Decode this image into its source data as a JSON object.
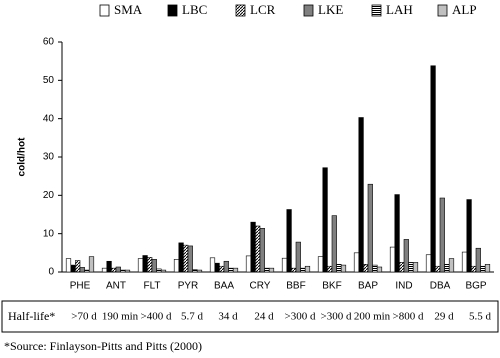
{
  "chart_data": {
    "type": "bar",
    "y_label": "cold/hot",
    "categories": [
      "PHE",
      "ANT",
      "FLT",
      "PYR",
      "BAA",
      "CRY",
      "BBF",
      "BKF",
      "BAP",
      "IND",
      "DBA",
      "BGP"
    ],
    "series": [
      {
        "name": "SMA",
        "color": "#ffffff",
        "values": [
          3.5,
          1.0,
          3.5,
          3.3,
          3.7,
          4.2,
          3.6,
          4.0,
          5.0,
          6.5,
          4.5,
          5.2
        ]
      },
      {
        "name": "LBC",
        "color": "#000000",
        "values": [
          1.8,
          2.8,
          4.3,
          7.6,
          2.3,
          13.0,
          16.3,
          27.2,
          40.3,
          20.2,
          53.8,
          18.9
        ]
      },
      {
        "name": "LCR",
        "color": "#000000",
        "pattern": "diagonal",
        "values": [
          3.0,
          1.0,
          3.8,
          7.0,
          1.5,
          12.0,
          1.0,
          1.5,
          2.0,
          2.5,
          1.5,
          1.5
        ]
      },
      {
        "name": "LKE",
        "color": "#808080",
        "values": [
          1.2,
          1.3,
          3.3,
          6.8,
          2.8,
          11.4,
          7.8,
          14.7,
          22.9,
          8.5,
          19.3,
          6.2
        ]
      },
      {
        "name": "LAH",
        "color": "#000000",
        "pattern": "horizontal",
        "values": [
          0.5,
          0.5,
          0.8,
          0.6,
          1.0,
          1.0,
          1.0,
          2.0,
          1.8,
          2.5,
          2.0,
          1.5
        ]
      },
      {
        "name": "ALP",
        "color": "#c0c0c0",
        "values": [
          4.0,
          0.5,
          0.5,
          0.5,
          1.0,
          1.0,
          1.5,
          1.8,
          1.3,
          2.5,
          3.5,
          2.0
        ]
      }
    ],
    "ylim": [
      0,
      60
    ],
    "yticks": [
      0,
      10,
      20,
      30,
      40,
      50,
      60
    ],
    "half_life_label": "Half-life*",
    "half_life": [
      ">70 d",
      "190 min",
      ">400 d",
      "5.7 d",
      "34 d",
      "24 d",
      ">300 d",
      ">300 d",
      "200 min",
      ">800 d",
      "29 d",
      "5.5 d"
    ],
    "source": "*Source: Finlayson-Pitts and Pitts (2000)"
  }
}
